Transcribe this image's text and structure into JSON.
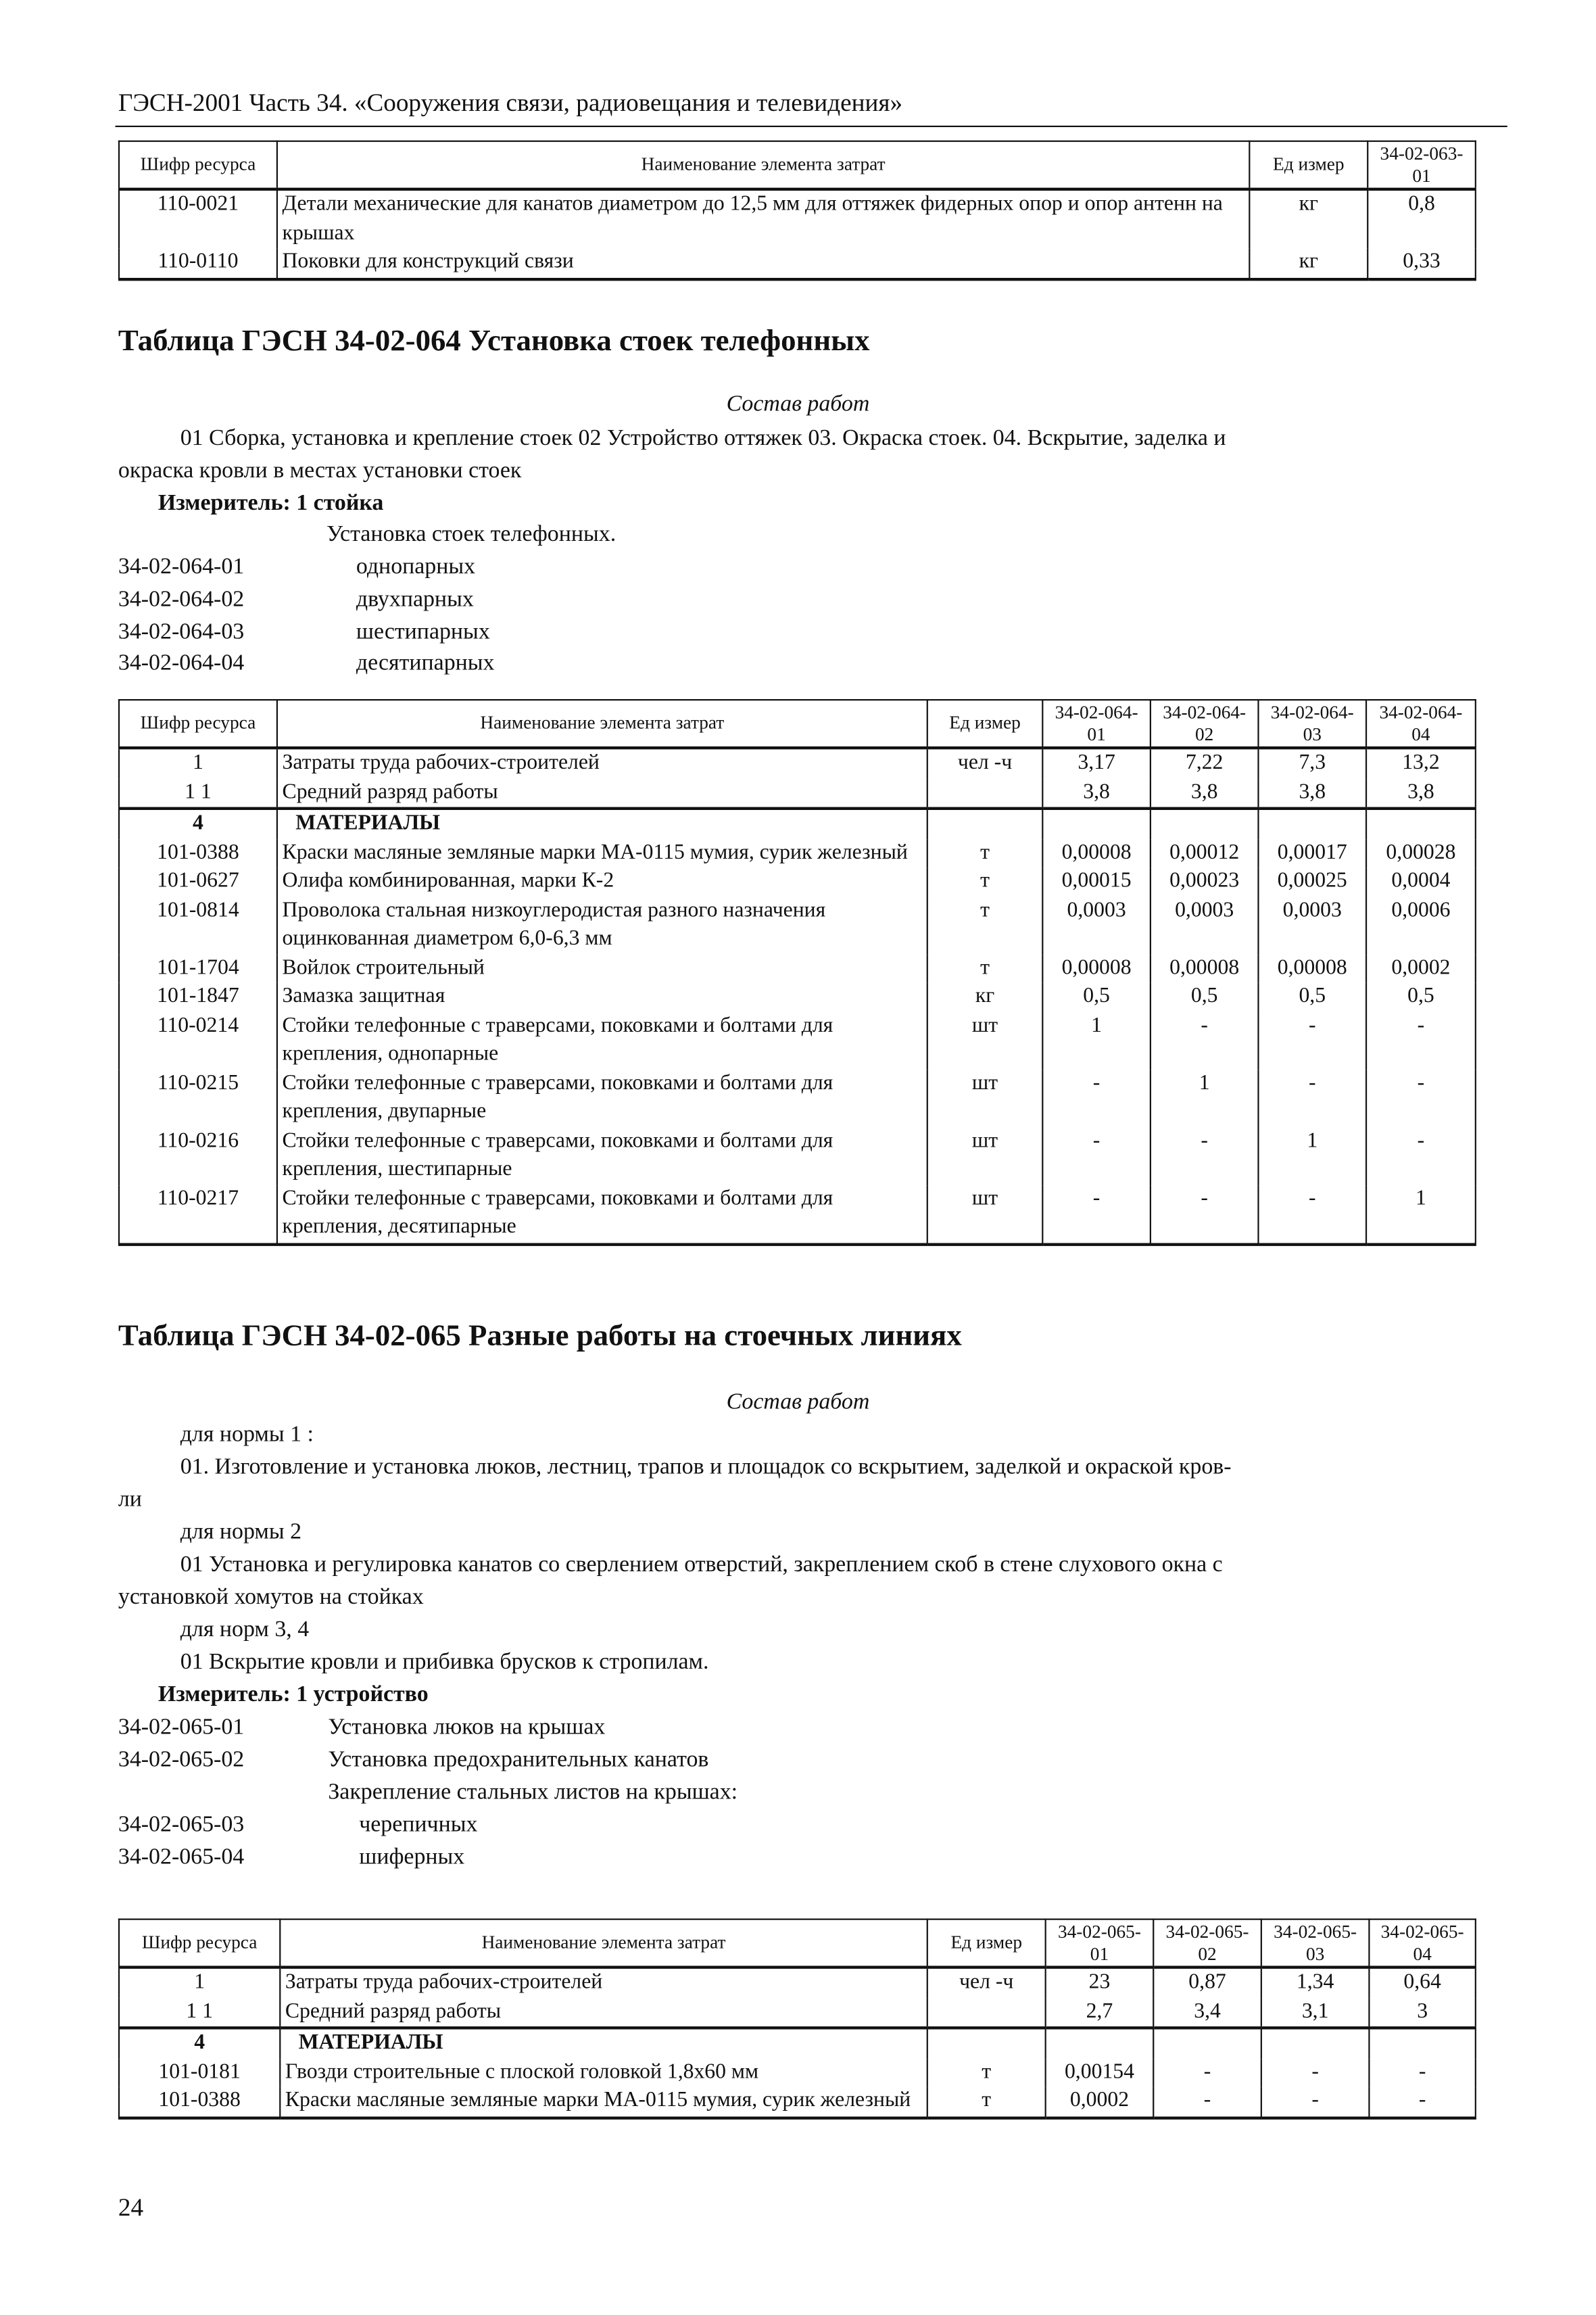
{
  "header": "ГЭСН-2001 Часть 34. «Сооружения связи, радиовещания и телевидения»",
  "table1": {
    "headers": [
      "Шифр ресурса",
      "Наименование элемента затрат",
      "Ед измер",
      "34-02-063-01"
    ],
    "rows": [
      [
        "110-0021",
        "Детали механические для канатов диаметром до 12,5 мм для оттяжек фидерных опор и опор антенн на крышах",
        "кг",
        "0,8"
      ],
      [
        "110-0110",
        "Поковки для конструкций связи",
        "кг",
        "0,33"
      ]
    ]
  },
  "section1": {
    "title": "Таблица ГЭСН 34-02-064 Установка стоек телефонных",
    "composition_label": "Состав работ",
    "composition_line1": "01 Сборка, установка и крепление стоек 02 Устройство оттяжек 03. Окраска стоек. 04. Вскрытие, заделка и",
    "composition_line2": "окраска кровли в местах установки стоек",
    "meter": "Измеритель:  1 стойка",
    "group": "Установка стоек телефонных.",
    "norms": [
      [
        "34-02-064-01",
        "однопарных"
      ],
      [
        "34-02-064-02",
        "двухпарных"
      ],
      [
        "34-02-064-03",
        "шестипарных"
      ],
      [
        "34-02-064-04",
        "десятипарных"
      ]
    ]
  },
  "table2": {
    "headers": [
      "Шифр ресурса",
      "Наименование элемента затрат",
      "Ед измер",
      "34-02-064-01",
      "34-02-064-02",
      "34-02-064-03",
      "34-02-064-04"
    ],
    "rows": [
      [
        "1",
        "Затраты труда рабочих-строителей",
        "чел -ч",
        "3,17",
        "7,22",
        "7,3",
        "13,2"
      ],
      [
        "1 1",
        "Средний разряд работы",
        "",
        "3,8",
        "3,8",
        "3,8",
        "3,8"
      ],
      [
        "4",
        "МАТЕРИАЛЫ",
        "",
        "",
        "",
        "",
        ""
      ],
      [
        "101-0388",
        "Краски масляные земляные марки МА-0115 мумия, сурик железный",
        "т",
        "0,00008",
        "0,00012",
        "0,00017",
        "0,00028"
      ],
      [
        "101-0627",
        "Олифа комбинированная, марки К-2",
        "т",
        "0,00015",
        "0,00023",
        "0,00025",
        "0,0004"
      ],
      [
        "101-0814",
        "Проволока стальная низкоуглеродистая разного назначения оцинкованная диаметром 6,0-6,3 мм",
        "т",
        "0,0003",
        "0,0003",
        "0,0003",
        "0,0006"
      ],
      [
        "101-1704",
        "Войлок строительный",
        "т",
        "0,00008",
        "0,00008",
        "0,00008",
        "0,0002"
      ],
      [
        "101-1847",
        "Замазка защитная",
        "кг",
        "0,5",
        "0,5",
        "0,5",
        "0,5"
      ],
      [
        "110-0214",
        "Стойки телефонные с траверсами, поковками и болтами для крепления, однопарные",
        "шт",
        "1",
        "-",
        "-",
        "-"
      ],
      [
        "110-0215",
        "Стойки телефонные с траверсами, поковками и болтами для крепления, двупарные",
        "шт",
        "-",
        "1",
        "-",
        "-"
      ],
      [
        "110-0216",
        "Стойки телефонные с траверсами, поковками и болтами для крепления, шестипарные",
        "шт",
        "-",
        "-",
        "1",
        "-"
      ],
      [
        "110-0217",
        "Стойки телефонные с траверсами, поковками и болтами для крепления, десятипарные",
        "шт",
        "-",
        "-",
        "-",
        "1"
      ]
    ]
  },
  "section2": {
    "title": "Таблица ГЭСН 34-02-065 Разные работы на стоечных линиях",
    "composition_label": "Состав работ",
    "lines": [
      "для нормы 1 :",
      "01. Изготовление и установка люков, лестниц, трапов и площадок со вскрытием, заделкой и окраской кров-",
      "ли",
      "для нормы 2",
      "01 Установка и регулировка канатов со сверлением отверстий, закреплением скоб в стене слухового окна с",
      "установкой хомутов на стойках",
      "для норм 3, 4",
      "01 Вскрытие кровли и прибивка брусков к стропилам."
    ],
    "meter": "Измеритель:  1 устройство",
    "norms": [
      [
        "34-02-065-01",
        "Установка люков на крышах"
      ],
      [
        "34-02-065-02",
        "Установка предохранительных канатов"
      ]
    ],
    "group": "Закрепление стальных листов на крышах:",
    "norms2": [
      [
        "34-02-065-03",
        "черепичных"
      ],
      [
        "34-02-065-04",
        "шиферных"
      ]
    ]
  },
  "table3": {
    "headers": [
      "Шифр ресурса",
      "Наименование элемента затрат",
      "Ед измер",
      "34-02-065-01",
      "34-02-065-02",
      "34-02-065-03",
      "34-02-065-04"
    ],
    "rows": [
      [
        "1",
        "Затраты труда рабочих-строителей",
        "чел -ч",
        "23",
        "0,87",
        "1,34",
        "0,64"
      ],
      [
        "1 1",
        "Средний разряд работы",
        "",
        "2,7",
        "3,4",
        "3,1",
        "3"
      ],
      [
        "4",
        "МАТЕРИАЛЫ",
        "",
        "",
        "",
        "",
        ""
      ],
      [
        "101-0181",
        "Гвозди строительные с плоской головкой 1,8х60 мм",
        "т",
        "0,00154",
        "-",
        "-",
        "-"
      ],
      [
        "101-0388",
        "Краски масляные земляные марки МА-0115 мумия, сурик железный",
        "т",
        "0,0002",
        "-",
        "-",
        "-"
      ]
    ]
  },
  "page_number": "24"
}
